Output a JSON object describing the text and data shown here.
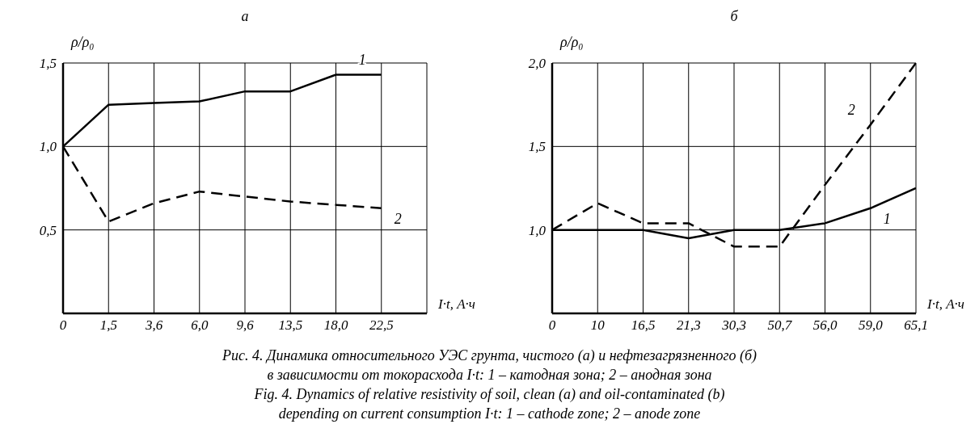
{
  "chart_data": [
    {
      "type": "line",
      "title": "а",
      "ylabel": "ρ/ρ₀",
      "xlabel": "I·t, А·ч",
      "categories": [
        "0",
        "1,5",
        "3,6",
        "6,0",
        "9,6",
        "13,5",
        "18,0",
        "22,5",
        null
      ],
      "ylim": [
        0,
        1.5
      ],
      "yticks": [
        {
          "value": 0.5,
          "label": "0,5"
        },
        {
          "value": 1.0,
          "label": "1,0"
        },
        {
          "value": 1.5,
          "label": "1,5"
        }
      ],
      "grid": true,
      "legend": false,
      "marker": "none",
      "series": [
        {
          "name": "1",
          "color": "#000000",
          "line_style": "solid",
          "values": [
            1.0,
            1.25,
            1.26,
            1.27,
            1.33,
            1.33,
            1.43,
            1.43,
            null
          ]
        },
        {
          "name": "2",
          "color": "#000000",
          "line_style": "dashed",
          "values": [
            1.0,
            0.55,
            0.66,
            0.73,
            0.7,
            0.67,
            0.65,
            0.63,
            null
          ]
        }
      ],
      "annotations": [
        "Рис. 4. Динамика относительного УЭС грунта, чистого (а) и нефтезагрязненного (б)",
        "в зависимости от токорасхода I·t: 1 – катодная зона; 2 – анодная зона",
        "Fig. 4. Dynamics of relative resistivity of soil, clean (a) and oil-contaminated (b)",
        "depending on current consumption I·t: 1 – cathode zone; 2 – anode zone"
      ]
    },
    {
      "type": "line",
      "title": "б",
      "ylabel": "ρ/ρ₀",
      "xlabel": "I·t, А·ч",
      "categories": [
        "0",
        "10",
        "16,5",
        "21,3",
        "30,3",
        "50,7",
        "56,0",
        "59,0",
        "65,1"
      ],
      "ylim": [
        0.5,
        2.0
      ],
      "yticks": [
        {
          "value": 1.0,
          "label": "1,0"
        },
        {
          "value": 1.5,
          "label": "1,5"
        },
        {
          "value": 2.0,
          "label": "2,0"
        }
      ],
      "grid": true,
      "legend": false,
      "marker": "none",
      "series": [
        {
          "name": "1",
          "color": "#000000",
          "line_style": "solid",
          "values": [
            1.0,
            1.0,
            1.0,
            0.95,
            1.0,
            1.0,
            1.04,
            1.13,
            1.25
          ]
        },
        {
          "name": "2",
          "color": "#000000",
          "line_style": "dashed",
          "values": [
            1.0,
            1.16,
            1.04,
            1.04,
            0.9,
            0.9,
            1.27,
            1.63,
            2.0
          ]
        }
      ]
    }
  ]
}
